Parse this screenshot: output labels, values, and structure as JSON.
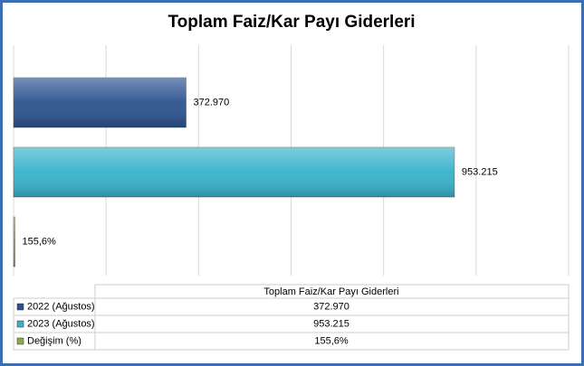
{
  "chart_data": {
    "type": "bar",
    "orientation": "horizontal",
    "title": "Toplam Faiz/Kar Payı Giderleri",
    "categories": [
      "Toplam Faiz/Kar Payı Giderleri"
    ],
    "series": [
      {
        "name": "2022 (Ağustos)",
        "color": "#2b528f",
        "values": [
          372970
        ],
        "value_labels": [
          "372.970"
        ]
      },
      {
        "name": "2023 (Ağustos)",
        "color": "#37b2cb",
        "values": [
          953215
        ],
        "value_labels": [
          "953.215"
        ]
      },
      {
        "name": "Değişim (%)",
        "color": "#8aac47",
        "values": [
          155.6
        ],
        "value_labels": [
          "155,6%"
        ]
      }
    ],
    "xlim": [
      0,
      1200000
    ],
    "xticks": [
      0,
      200000,
      400000,
      600000,
      800000,
      1000000,
      1200000
    ],
    "grid": true
  }
}
